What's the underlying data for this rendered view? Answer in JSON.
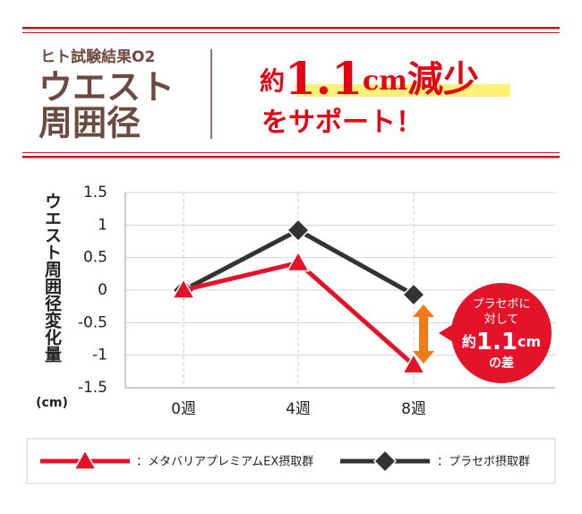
{
  "header": {
    "label": "ヒト試験結果O2",
    "title_line1": "ウエスト",
    "title_line2": "周囲径",
    "approx": "約",
    "amount": "1.1",
    "unit": "cm",
    "verb": "減少",
    "support": "をサポート！"
  },
  "callout": {
    "line1": "プラセボに",
    "line2": "対して",
    "approx": "約",
    "amount": "1.1",
    "unit": "cm",
    "line4": "の差"
  },
  "chart_data": {
    "type": "line",
    "y_label": "ウエスト周囲径変化量",
    "y_unit": "(cm)",
    "categories": [
      "0週",
      "4週",
      "8週"
    ],
    "series": [
      {
        "name": "：メタバリアプレミアムEX摂取群",
        "color": "#e5132a",
        "marker": "triangle",
        "values": [
          0,
          0.42,
          -1.15
        ]
      },
      {
        "name": "：プラセボ摂取群",
        "color": "#333333",
        "marker": "diamond",
        "values": [
          0,
          0.92,
          -0.07
        ]
      }
    ],
    "ylim": [
      -1.5,
      1.5
    ],
    "yticks": [
      1.5,
      1,
      0.5,
      0,
      -0.5,
      -1,
      -1.5
    ],
    "grid": true
  }
}
